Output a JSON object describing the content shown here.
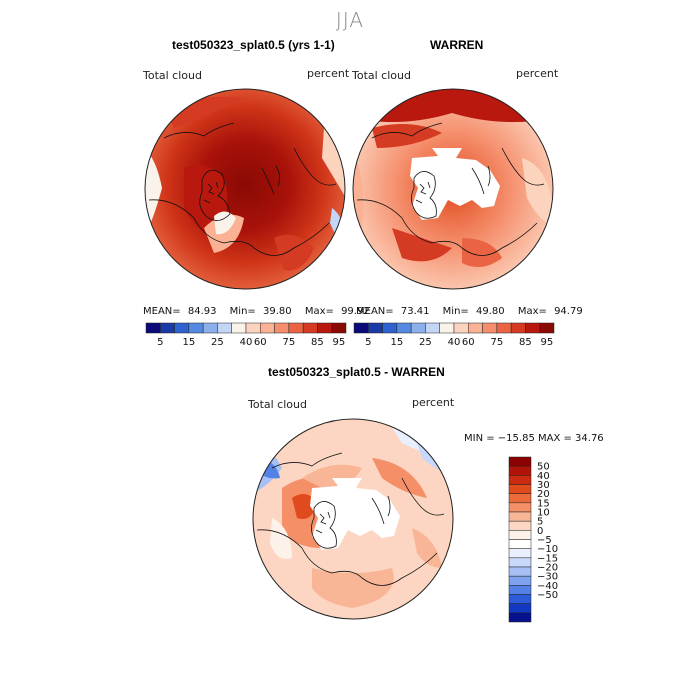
{
  "season": "JJA",
  "panels": [
    {
      "title": "test050323_splat0.5 (yrs 1-1)",
      "variable": "Total cloud",
      "units": "percent",
      "stats": {
        "mean_label": "MEAN=",
        "mean": "84.93",
        "min_label": "Min=",
        "min": "39.80",
        "max_label": "Max=",
        "max": "99.92"
      },
      "field": "model"
    },
    {
      "title": "WARREN",
      "variable": "Total cloud",
      "units": "percent",
      "stats": {
        "mean_label": "MEAN=",
        "mean": "73.41",
        "min_label": "Min=",
        "min": "49.80",
        "max_label": "Max=",
        "max": "94.79"
      },
      "field": "obs"
    },
    {
      "title": "test050323_splat0.5 - WARREN",
      "variable": "Total cloud",
      "units": "percent",
      "minmax_text": "MIN = −15.85 MAX =  34.76",
      "field": "diff"
    }
  ],
  "colorbar_top": {
    "colors": [
      "#0a0a7a",
      "#1a3aa8",
      "#2f62d0",
      "#5688e0",
      "#8cb0ec",
      "#c3d6f6",
      "#f9f3ec",
      "#fcd3bd",
      "#fbb294",
      "#f58e6c",
      "#ea6443",
      "#d53a22",
      "#b8180e",
      "#8a0a04"
    ],
    "tick_labels": [
      "5",
      "15",
      "25",
      "40",
      "60",
      "75",
      "85",
      "95"
    ]
  },
  "colorbar_diff": {
    "colors": [
      "#8b0000",
      "#b01408",
      "#cc2a0e",
      "#e04b1d",
      "#ec6b3c",
      "#f48f68",
      "#f8b697",
      "#fcd6c2",
      "#fdf2ea",
      "#ffffff",
      "#e9efff",
      "#c8d8fb",
      "#a6c0f5",
      "#7ea2ee",
      "#5481e5",
      "#2c5cd9",
      "#1338c2",
      "#06128d"
    ],
    "tick_labels": [
      "50",
      "40",
      "30",
      "20",
      "15",
      "10",
      "5",
      "0",
      "−5",
      "−10",
      "−15",
      "−20",
      "−30",
      "−40",
      "−50"
    ]
  }
}
